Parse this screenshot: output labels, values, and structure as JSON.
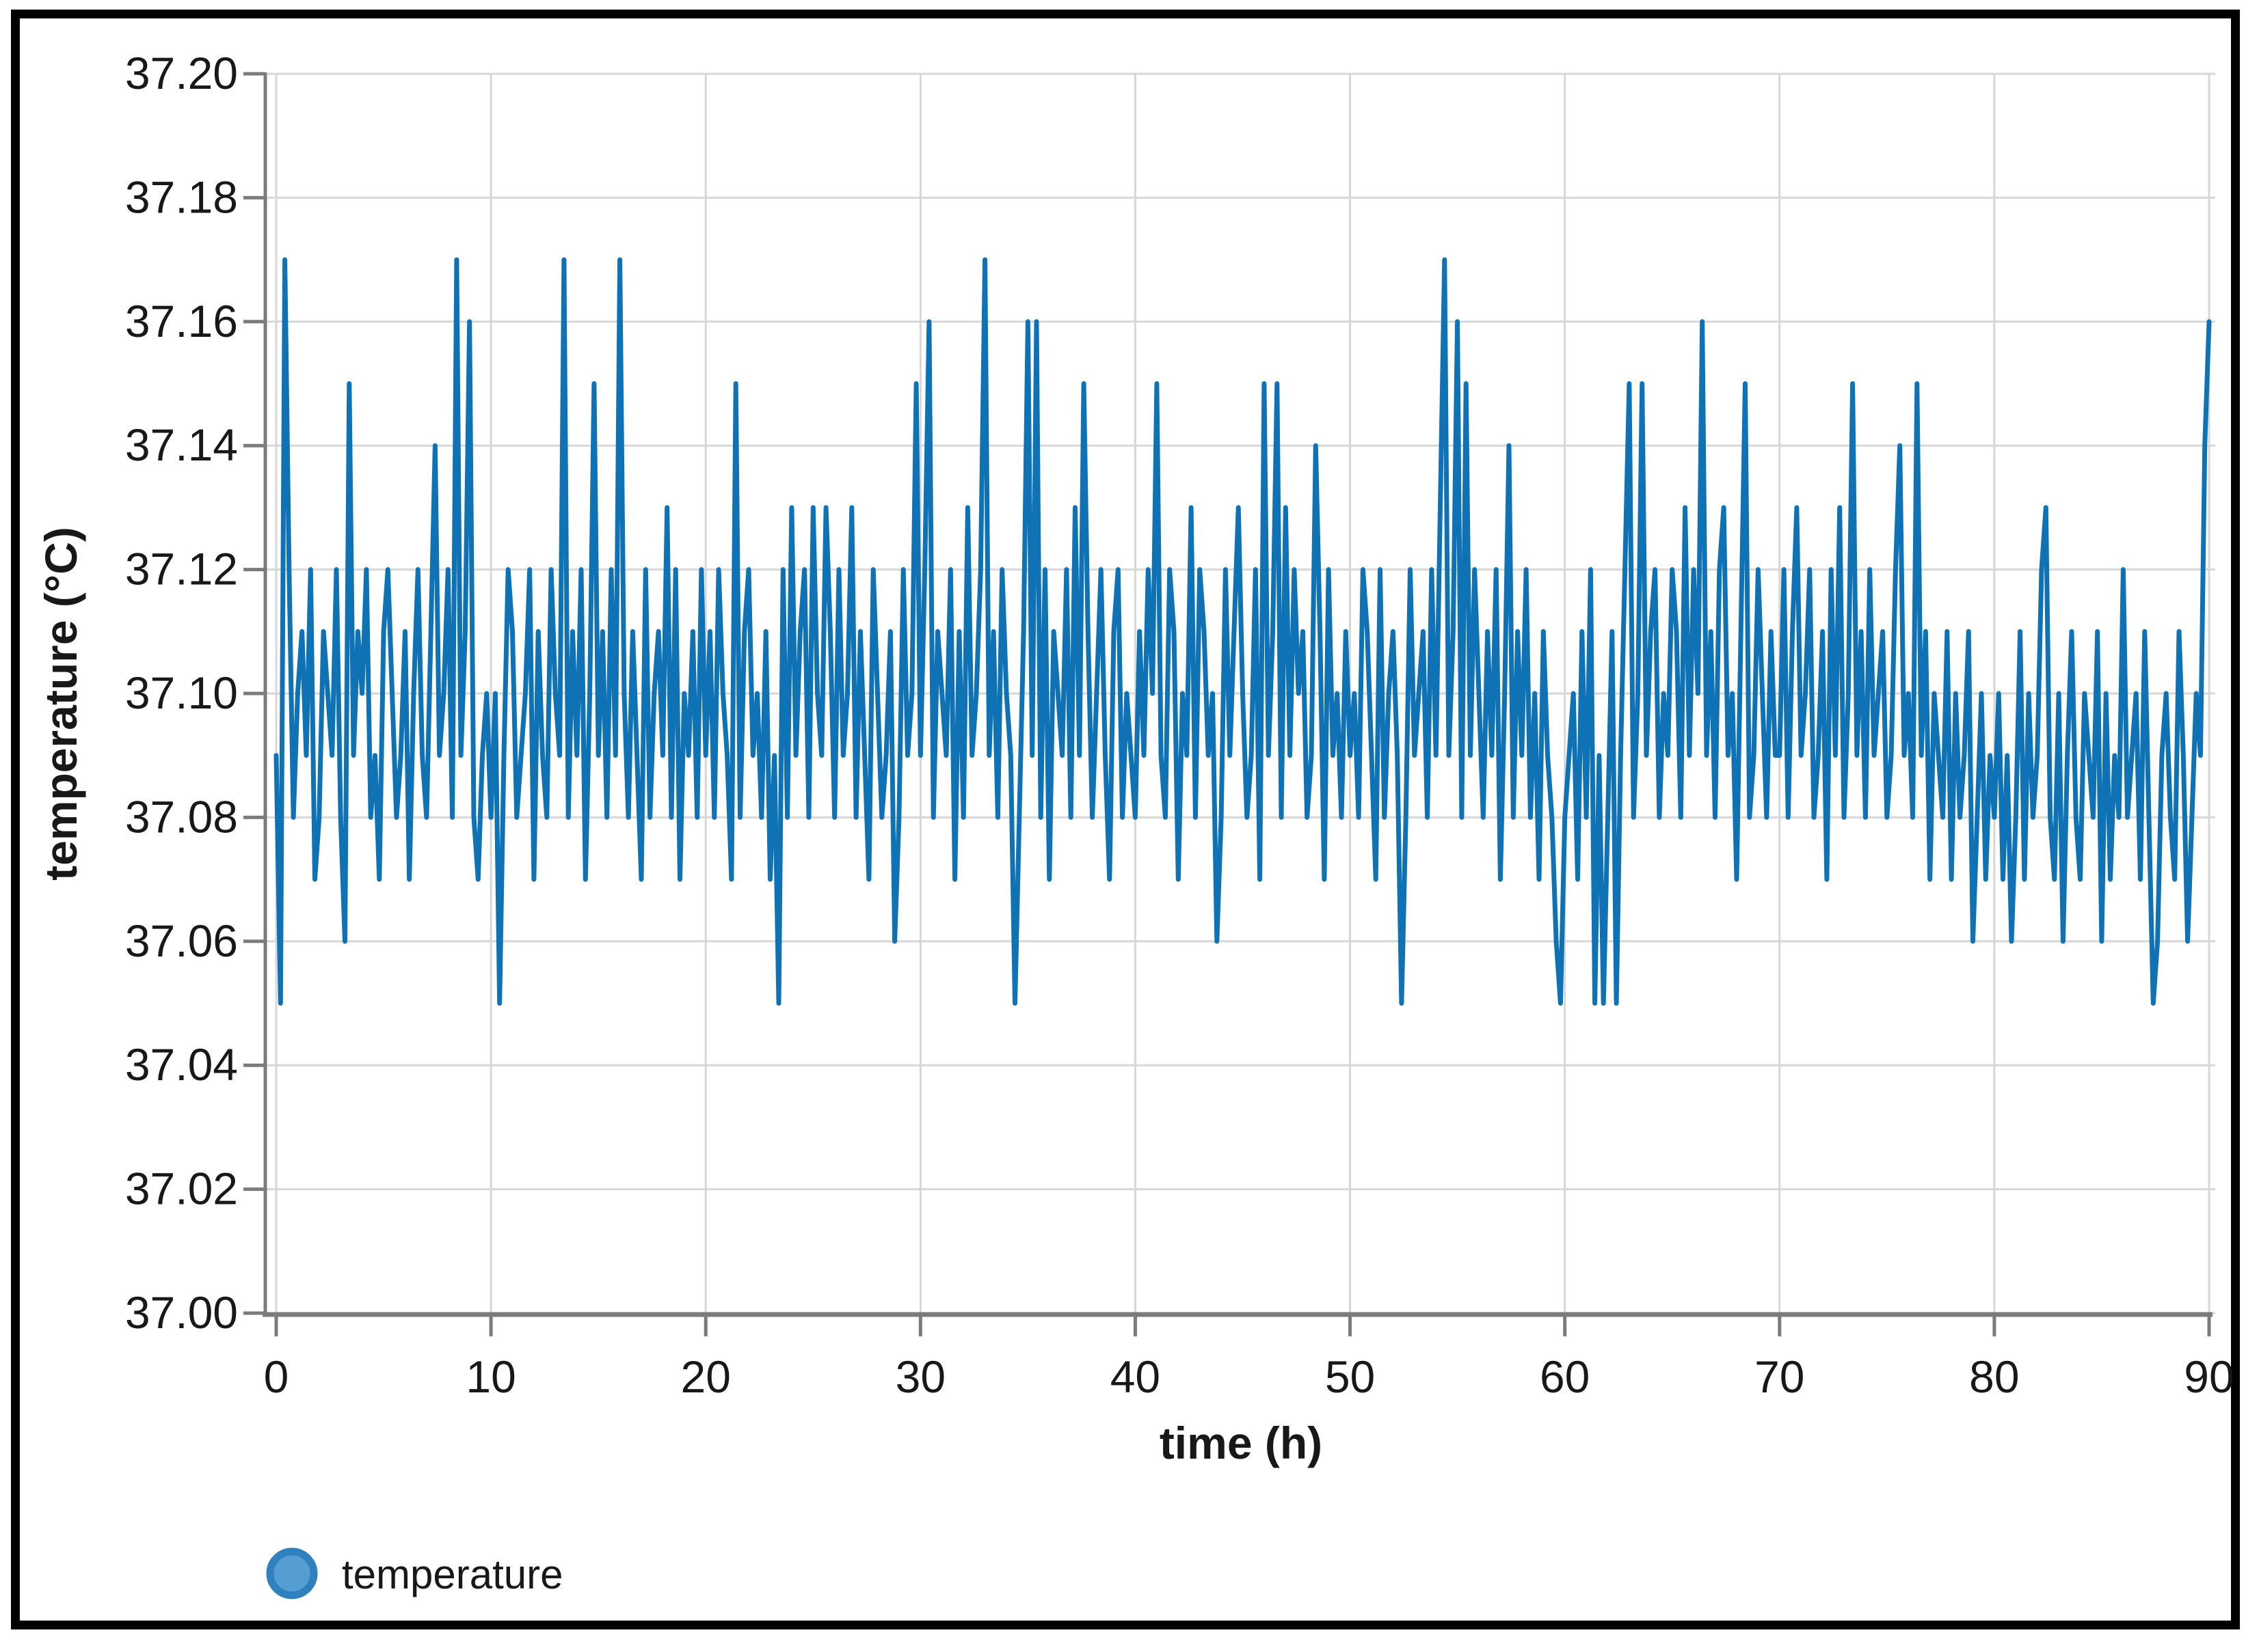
{
  "chart_data": {
    "type": "line",
    "title": "",
    "xlabel": "time (h)",
    "ylabel": "temperature (°C)",
    "xlim": [
      0,
      90
    ],
    "ylim": [
      37.0,
      37.2
    ],
    "x_ticks": [
      0,
      10,
      20,
      30,
      40,
      50,
      60,
      70,
      80,
      90
    ],
    "x_tick_labels": [
      "0",
      "10",
      "20",
      "30",
      "40",
      "50",
      "60",
      "70",
      "80",
      "90"
    ],
    "y_ticks": [
      37.0,
      37.02,
      37.04,
      37.06,
      37.08,
      37.1,
      37.12,
      37.14,
      37.16,
      37.18,
      37.2
    ],
    "y_tick_labels": [
      "37.00",
      "37.02",
      "37.04",
      "37.06",
      "37.08",
      "37.10",
      "37.12",
      "37.14",
      "37.16",
      "37.18",
      "37.20"
    ],
    "grid": true,
    "legend_position": "bottom-left",
    "series": [
      {
        "name": "temperature",
        "color": "#0f72b5",
        "marker": "circle",
        "x_start": 0,
        "x_step": 0.2,
        "value_base": 37.0,
        "value_scale": 0.01,
        "alphabet": "0123456789abcdefgh",
        "encoded_values": "95hc8ab9c78ba9c86f9bac897bca89b7ac98be9ac8h9bg879a8a59cb89ac7b98ca9h8b9c7af9b8c9ha8b97c8ab9d8c7a9b8c9b8ca97f8bc9a8b795c8d9bc8da9db8c9ad8b97ca89b68c9af9cg8ba9c7b8d9ach9b8ca958bg9g8c7ba9c8d9fb8ac97bc8a98b9caf98cb7a9d8cb9a68c9bda89c7f9bf8d9cab89eb7c9a8b9a8cb97c8ab958c9ab8c9dh9bg8f9ca8b9c7ae8b9c8a7b986589a7b8c5958b59cf8af9bc8a9cb8d9cag9b8cd9a7bf89ca8b99c8bd9ac89b7c9d8af9b8c9ab89ce9a8f9b7a98b7a89b68a798a7968b7a89cd87a69b87a98b6a798c89a7b8569a87b968a9eg"
      }
    ]
  },
  "legend": {
    "label": "temperature"
  },
  "colors": {
    "line": "#0f72b5",
    "grid": "#d7d7d7",
    "axis": "#7b7b7b",
    "text": "#181818",
    "legend_fill": "#559ed3",
    "legend_stroke": "#2f81bd",
    "frame": "#000000"
  }
}
